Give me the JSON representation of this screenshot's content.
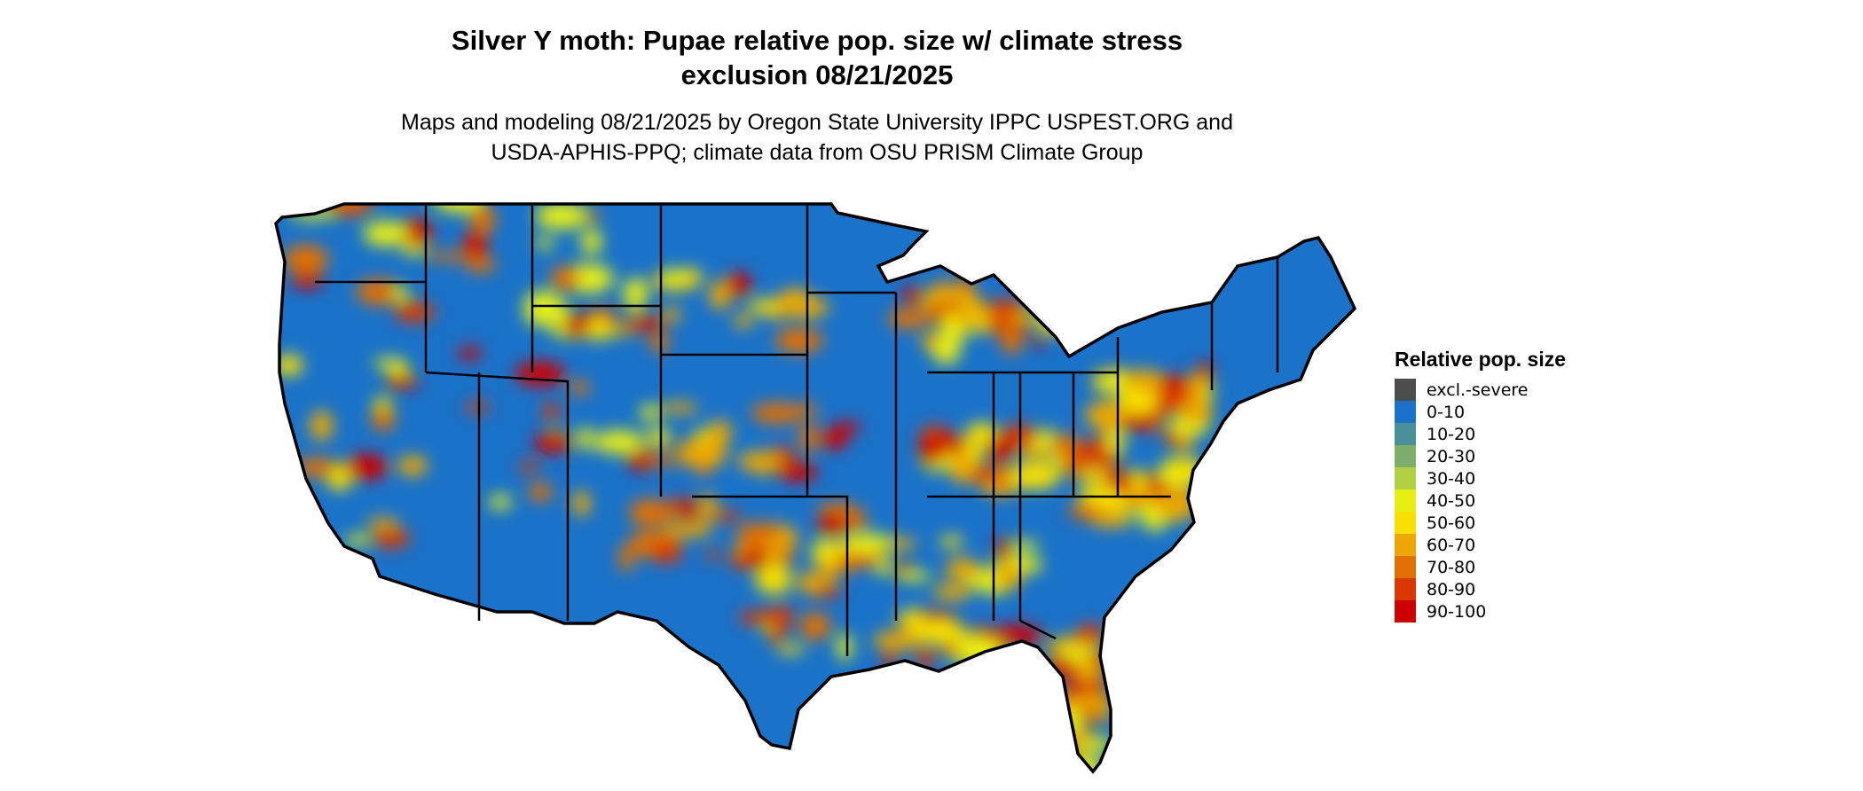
{
  "title": {
    "line1": "Silver Y moth: Pupae relative pop. size w/ climate stress",
    "line2": "exclusion 08/21/2025"
  },
  "subtitle": {
    "line1": "Maps and modeling 08/21/2025 by Oregon State University IPPC USPEST.ORG and",
    "line2": "USDA-APHIS-PPQ; climate data from OSU PRISM Climate Group"
  },
  "map": {
    "region": "Contiguous United States",
    "base_color": "#1a72c9",
    "border_color": "#000000"
  },
  "legend": {
    "title": "Relative pop. size",
    "items": [
      {
        "label": "excl.-severe",
        "color": "#4d4d4d"
      },
      {
        "label": "0-10",
        "color": "#1a72c9"
      },
      {
        "label": "10-20",
        "color": "#4a909a"
      },
      {
        "label": "20-30",
        "color": "#7fae6c"
      },
      {
        "label": "30-40",
        "color": "#b2d044"
      },
      {
        "label": "40-50",
        "color": "#e5ef14"
      },
      {
        "label": "50-60",
        "color": "#f8e000"
      },
      {
        "label": "60-70",
        "color": "#eca800"
      },
      {
        "label": "70-80",
        "color": "#e27000"
      },
      {
        "label": "80-90",
        "color": "#d93800"
      },
      {
        "label": "90-100",
        "color": "#cc0000"
      }
    ]
  }
}
